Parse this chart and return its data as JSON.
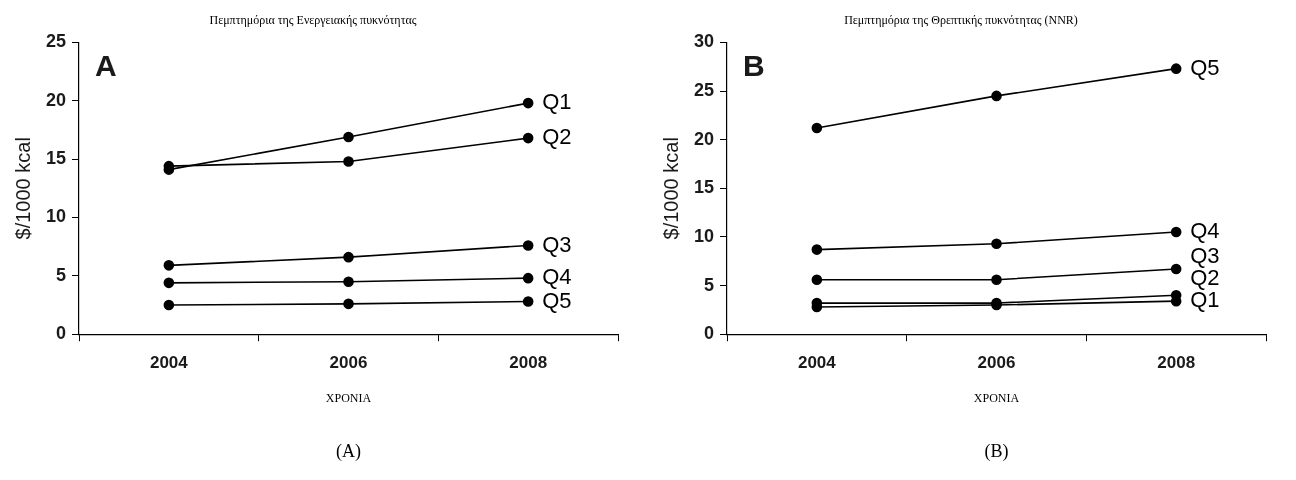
{
  "chart_data": [
    {
      "type": "line",
      "title": "Πεμπτημόρια της Ενεργειακής πυκνότητας",
      "xlabel": "ΧΡΟΝΙΑ",
      "ylabel": "$/1000 kcal",
      "categories": [
        "2004",
        "2006",
        "2008"
      ],
      "ylim": [
        0,
        25
      ],
      "yticks": [
        0,
        5,
        10,
        15,
        20,
        25
      ],
      "marker": "circle",
      "annotations": [
        "A",
        "(A)"
      ],
      "series": [
        {
          "name": "Q1",
          "color": "#000000",
          "values": [
            14.1,
            16.9,
            19.8
          ]
        },
        {
          "name": "Q2",
          "color": "#000000",
          "values": [
            14.4,
            14.8,
            16.8
          ]
        },
        {
          "name": "Q3",
          "color": "#000000",
          "values": [
            5.9,
            6.6,
            7.6
          ]
        },
        {
          "name": "Q4",
          "color": "#000000",
          "values": [
            4.4,
            4.5,
            4.8
          ]
        },
        {
          "name": "Q5",
          "color": "#000000",
          "values": [
            2.5,
            2.6,
            2.8
          ]
        }
      ]
    },
    {
      "type": "line",
      "title": "Πεμπτημόρια της Θρεπτικής πυκνότητας (NNR)",
      "xlabel": "ΧΡΟΝΙΑ",
      "ylabel": "$/1000 kcal",
      "categories": [
        "2004",
        "2006",
        "2008"
      ],
      "ylim": [
        0,
        30
      ],
      "yticks": [
        0,
        5,
        10,
        15,
        20,
        25,
        30
      ],
      "marker": "circle",
      "annotations": [
        "B",
        "(B)"
      ],
      "series": [
        {
          "name": "Q5",
          "color": "#000000",
          "values": [
            21.2,
            24.5,
            27.3
          ]
        },
        {
          "name": "Q4",
          "color": "#000000",
          "values": [
            8.7,
            9.3,
            10.5
          ]
        },
        {
          "name": "Q3",
          "color": "#000000",
          "values": [
            5.6,
            5.6,
            6.7
          ]
        },
        {
          "name": "Q2",
          "color": "#000000",
          "values": [
            3.2,
            3.2,
            4.0
          ]
        },
        {
          "name": "Q1",
          "color": "#000000",
          "values": [
            2.8,
            3.0,
            3.4
          ]
        }
      ]
    }
  ]
}
